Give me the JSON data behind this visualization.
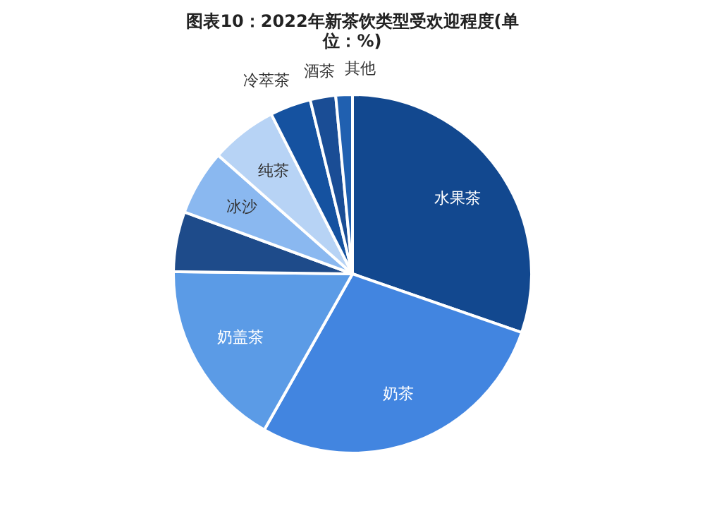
{
  "chart_data": {
    "type": "pie",
    "title": "图表10：2022年新茶饮类型受欢迎程度(单位：%)",
    "categories": [
      "水果茶",
      "奶茶",
      "奶盖茶",
      null,
      "冰沙",
      "纯茶",
      "冷萃茶",
      "酒茶",
      "其他"
    ],
    "values": [
      30.3,
      27.9,
      17,
      5.4,
      5.9,
      6,
      3.7,
      2.3,
      1.5
    ],
    "colors": [
      "#12488f",
      "#4285e0",
      "#5b9be6",
      "#1e4b8a",
      "#8ab8f0",
      "#b7d3f5",
      "#1552a0",
      "#1a4d95",
      "#2060b0"
    ],
    "legend": false
  }
}
